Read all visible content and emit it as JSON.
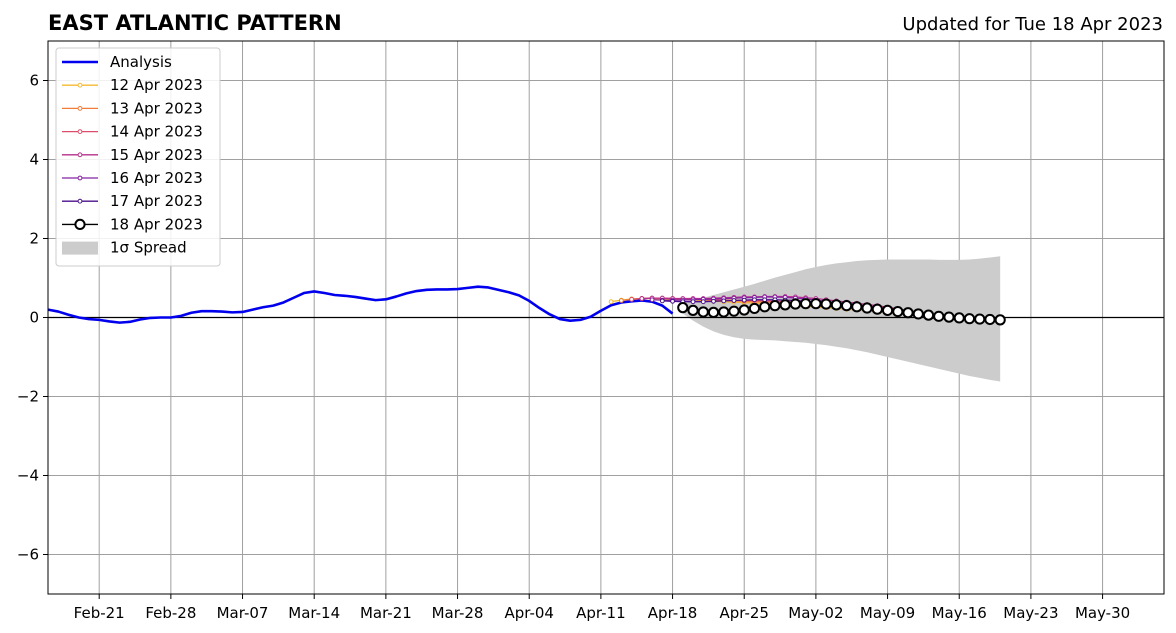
{
  "chart_data": {
    "type": "line",
    "title": "EAST ATLANTIC PATTERN",
    "subtitle": "Updated for Tue 18 Apr 2023",
    "xlabel": "",
    "ylabel": "",
    "xlim": [
      "2023-02-16",
      "2023-06-05"
    ],
    "ylim": [
      -7,
      7
    ],
    "grid": true,
    "legend_position": "top-left",
    "x_ticks": [
      {
        "date": "2023-02-21",
        "label": "Feb-21"
      },
      {
        "date": "2023-02-28",
        "label": "Feb-28"
      },
      {
        "date": "2023-03-07",
        "label": "Mar-07"
      },
      {
        "date": "2023-03-14",
        "label": "Mar-14"
      },
      {
        "date": "2023-03-21",
        "label": "Mar-21"
      },
      {
        "date": "2023-03-28",
        "label": "Mar-28"
      },
      {
        "date": "2023-04-04",
        "label": "Apr-04"
      },
      {
        "date": "2023-04-11",
        "label": "Apr-11"
      },
      {
        "date": "2023-04-18",
        "label": "Apr-18"
      },
      {
        "date": "2023-04-25",
        "label": "Apr-25"
      },
      {
        "date": "2023-05-02",
        "label": "May-02"
      },
      {
        "date": "2023-05-09",
        "label": "May-09"
      },
      {
        "date": "2023-05-16",
        "label": "May-16"
      },
      {
        "date": "2023-05-23",
        "label": "May-23"
      },
      {
        "date": "2023-05-30",
        "label": "May-30"
      }
    ],
    "y_ticks": [
      {
        "value": 6,
        "label": "6"
      },
      {
        "value": 4,
        "label": "4"
      },
      {
        "value": 2,
        "label": "2"
      },
      {
        "value": 0,
        "label": "0"
      },
      {
        "value": -2,
        "label": "−2"
      },
      {
        "value": -4,
        "label": "−4"
      },
      {
        "value": -6,
        "label": "−6"
      }
    ],
    "analysis": {
      "name": "Analysis",
      "color": "#0000ee",
      "points": [
        [
          "2023-02-16",
          0.2
        ],
        [
          "2023-02-17",
          0.15
        ],
        [
          "2023-02-18",
          0.07
        ],
        [
          "2023-02-19",
          0.0
        ],
        [
          "2023-02-20",
          -0.04
        ],
        [
          "2023-02-21",
          -0.06
        ],
        [
          "2023-02-22",
          -0.1
        ],
        [
          "2023-02-23",
          -0.13
        ],
        [
          "2023-02-24",
          -0.11
        ],
        [
          "2023-02-25",
          -0.05
        ],
        [
          "2023-02-26",
          -0.01
        ],
        [
          "2023-02-27",
          0.0
        ],
        [
          "2023-02-28",
          0.0
        ],
        [
          "2023-03-01",
          0.04
        ],
        [
          "2023-03-02",
          0.12
        ],
        [
          "2023-03-03",
          0.16
        ],
        [
          "2023-03-04",
          0.16
        ],
        [
          "2023-03-05",
          0.15
        ],
        [
          "2023-03-06",
          0.13
        ],
        [
          "2023-03-07",
          0.14
        ],
        [
          "2023-03-08",
          0.2
        ],
        [
          "2023-03-09",
          0.26
        ],
        [
          "2023-03-10",
          0.3
        ],
        [
          "2023-03-11",
          0.38
        ],
        [
          "2023-03-12",
          0.5
        ],
        [
          "2023-03-13",
          0.62
        ],
        [
          "2023-03-14",
          0.66
        ],
        [
          "2023-03-15",
          0.62
        ],
        [
          "2023-03-16",
          0.57
        ],
        [
          "2023-03-17",
          0.55
        ],
        [
          "2023-03-18",
          0.52
        ],
        [
          "2023-03-19",
          0.48
        ],
        [
          "2023-03-20",
          0.44
        ],
        [
          "2023-03-21",
          0.46
        ],
        [
          "2023-03-22",
          0.53
        ],
        [
          "2023-03-23",
          0.61
        ],
        [
          "2023-03-24",
          0.67
        ],
        [
          "2023-03-25",
          0.7
        ],
        [
          "2023-03-26",
          0.71
        ],
        [
          "2023-03-27",
          0.71
        ],
        [
          "2023-03-28",
          0.72
        ],
        [
          "2023-03-29",
          0.75
        ],
        [
          "2023-03-30",
          0.78
        ],
        [
          "2023-03-31",
          0.76
        ],
        [
          "2023-04-01",
          0.7
        ],
        [
          "2023-04-02",
          0.64
        ],
        [
          "2023-04-03",
          0.56
        ],
        [
          "2023-04-04",
          0.42
        ],
        [
          "2023-04-05",
          0.24
        ],
        [
          "2023-04-06",
          0.08
        ],
        [
          "2023-04-07",
          -0.04
        ],
        [
          "2023-04-08",
          -0.08
        ],
        [
          "2023-04-09",
          -0.06
        ],
        [
          "2023-04-10",
          0.02
        ],
        [
          "2023-04-11",
          0.17
        ],
        [
          "2023-04-12",
          0.31
        ],
        [
          "2023-04-13",
          0.38
        ],
        [
          "2023-04-14",
          0.41
        ],
        [
          "2023-04-15",
          0.43
        ],
        [
          "2023-04-16",
          0.4
        ],
        [
          "2023-04-17",
          0.3
        ],
        [
          "2023-04-18",
          0.1
        ]
      ]
    },
    "forecast_start": "2023-04-12",
    "forecasts": [
      {
        "name": "12 Apr 2023",
        "color": "#f5b931",
        "values": [
          0.4,
          0.44,
          0.47,
          0.48,
          0.48,
          0.47,
          0.46,
          0.45,
          0.44,
          0.43,
          0.41,
          0.4,
          0.39,
          0.38,
          0.36,
          0.35,
          0.34,
          0.32,
          0.31,
          0.29,
          0.27,
          0.25,
          0.23,
          0.21,
          0.19,
          0.17,
          0.15,
          0.13,
          0.1,
          0.08,
          0.05,
          0.03,
          0.0
        ]
      },
      {
        "name": "13 Apr 2023",
        "color": "#f07d3a",
        "values": [
          0.43,
          0.46,
          0.48,
          0.49,
          0.49,
          0.48,
          0.47,
          0.46,
          0.45,
          0.44,
          0.43,
          0.42,
          0.41,
          0.4,
          0.39,
          0.38,
          0.37,
          0.35,
          0.33,
          0.31,
          0.29,
          0.27,
          0.25,
          0.23,
          0.21,
          0.18,
          0.16,
          0.13,
          0.11,
          0.08,
          0.05,
          0.02
        ]
      },
      {
        "name": "14 Apr 2023",
        "color": "#dd4c6a",
        "values": [
          0.46,
          0.48,
          0.49,
          0.49,
          0.48,
          0.47,
          0.46,
          0.45,
          0.45,
          0.44,
          0.44,
          0.43,
          0.43,
          0.42,
          0.41,
          0.4,
          0.39,
          0.37,
          0.35,
          0.33,
          0.31,
          0.29,
          0.27,
          0.25,
          0.22,
          0.2,
          0.17,
          0.14,
          0.11,
          0.08,
          0.05
        ]
      },
      {
        "name": "15 Apr 2023",
        "color": "#b52f8c",
        "values": [
          0.48,
          0.49,
          0.49,
          0.48,
          0.48,
          0.48,
          0.48,
          0.49,
          0.5,
          0.51,
          0.52,
          0.52,
          0.53,
          0.53,
          0.53,
          0.52,
          0.5,
          0.48,
          0.45,
          0.42,
          0.39,
          0.36,
          0.33,
          0.3,
          0.26,
          0.22,
          0.18,
          0.14,
          0.1,
          0.06
        ]
      },
      {
        "name": "16 Apr 2023",
        "color": "#8522a0",
        "values": [
          0.45,
          0.44,
          0.44,
          0.44,
          0.45,
          0.46,
          0.47,
          0.48,
          0.49,
          0.5,
          0.51,
          0.52,
          0.52,
          0.51,
          0.49,
          0.47,
          0.44,
          0.41,
          0.38,
          0.35,
          0.31,
          0.27,
          0.23,
          0.19,
          0.15,
          0.11,
          0.07,
          0.03,
          -0.01
        ]
      },
      {
        "name": "17 Apr 2023",
        "color": "#4a0f8a",
        "values": [
          0.42,
          0.41,
          0.4,
          0.4,
          0.4,
          0.41,
          0.42,
          0.43,
          0.44,
          0.45,
          0.45,
          0.45,
          0.44,
          0.43,
          0.41,
          0.39,
          0.36,
          0.33,
          0.3,
          0.27,
          0.23,
          0.19,
          0.15,
          0.11,
          0.07,
          0.03,
          -0.01,
          -0.04
        ]
      }
    ],
    "current_forecast": {
      "name": "18 Apr 2023",
      "color": "#000000",
      "start": "2023-04-19",
      "values": [
        0.25,
        0.18,
        0.14,
        0.13,
        0.14,
        0.16,
        0.19,
        0.23,
        0.27,
        0.3,
        0.32,
        0.34,
        0.35,
        0.35,
        0.34,
        0.32,
        0.3,
        0.27,
        0.24,
        0.21,
        0.18,
        0.15,
        0.12,
        0.09,
        0.06,
        0.03,
        0.01,
        -0.01,
        -0.03,
        -0.04,
        -0.05,
        -0.06
      ]
    },
    "spread": {
      "name": "1σ Spread",
      "color": "#cccccc",
      "start": "2023-04-19",
      "upper": [
        0.35,
        0.43,
        0.5,
        0.57,
        0.64,
        0.71,
        0.78,
        0.85,
        0.93,
        1.01,
        1.08,
        1.15,
        1.22,
        1.28,
        1.33,
        1.37,
        1.4,
        1.43,
        1.45,
        1.46,
        1.47,
        1.47,
        1.47,
        1.47,
        1.47,
        1.46,
        1.46,
        1.46,
        1.47,
        1.49,
        1.52,
        1.55
      ],
      "lower": [
        0.1,
        -0.08,
        -0.23,
        -0.35,
        -0.44,
        -0.5,
        -0.54,
        -0.56,
        -0.57,
        -0.58,
        -0.6,
        -0.62,
        -0.64,
        -0.67,
        -0.7,
        -0.74,
        -0.78,
        -0.83,
        -0.88,
        -0.94,
        -1.0,
        -1.06,
        -1.12,
        -1.18,
        -1.24,
        -1.3,
        -1.36,
        -1.42,
        -1.48,
        -1.53,
        -1.58,
        -1.62
      ]
    }
  }
}
